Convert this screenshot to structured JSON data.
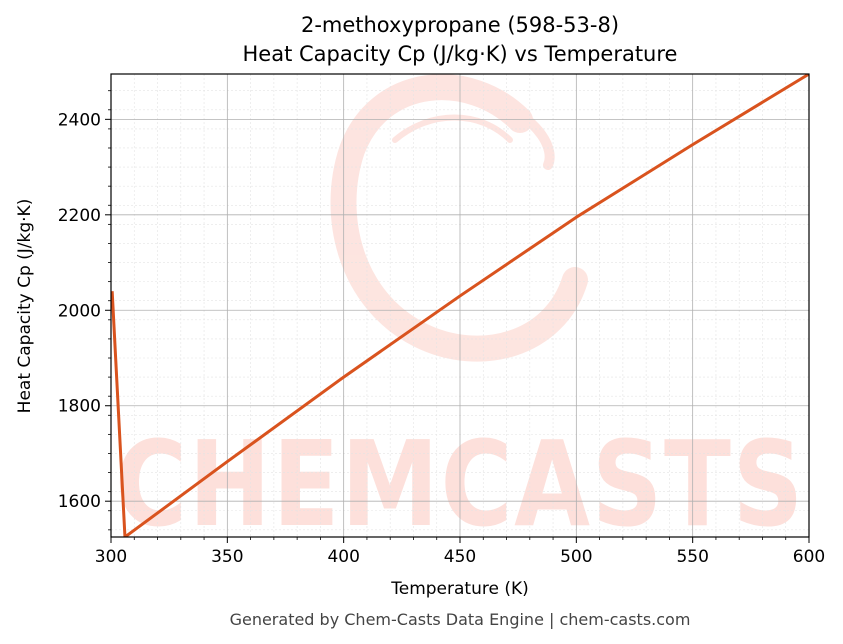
{
  "chart_data": {
    "type": "line",
    "title_line1": "2-methoxypropane (598-53-8)",
    "title_line2": "Heat Capacity Cp (J/kg·K) vs Temperature",
    "xlabel": "Temperature (K)",
    "ylabel": "Heat Capacity Cp (J/kg·K)",
    "xlim": [
      300,
      600
    ],
    "ylim": [
      1525,
      2495
    ],
    "x_ticks": [
      300,
      350,
      400,
      450,
      500,
      550,
      600
    ],
    "y_ticks": [
      1600,
      1800,
      2000,
      2200,
      2400
    ],
    "x_tick_labels": [
      "300",
      "350",
      "400",
      "450",
      "500",
      "550",
      "600"
    ],
    "y_tick_labels": [
      "1600",
      "1800",
      "2000",
      "2200",
      "2400"
    ],
    "grid": true,
    "series": [
      {
        "color": "#d9531e",
        "x": [
          300.5,
          306,
          350,
          400,
          450,
          500,
          550,
          600
        ],
        "y": [
          2040,
          1525,
          1683,
          1860,
          2030,
          2195,
          2347,
          2495
        ]
      }
    ]
  },
  "footer": "Generated by Chem-Casts Data Engine | chem-casts.com",
  "watermark": {
    "text": "CHEMCASTS",
    "color": "#fde0db"
  }
}
